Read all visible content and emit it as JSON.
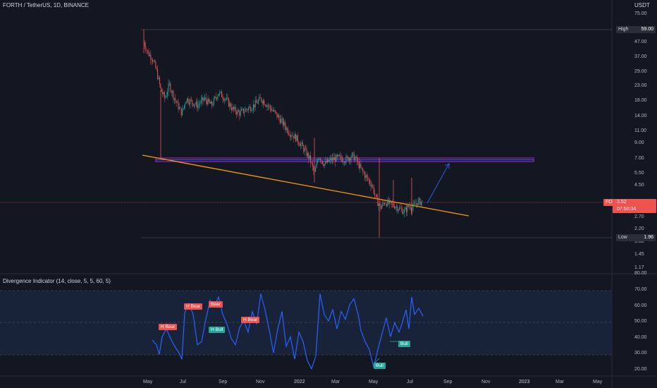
{
  "header": {
    "symbol_title": "FORTH / TetherUS, 1D, BINANCE",
    "currency": "USDT"
  },
  "price_axis": {
    "ticks": [
      "75.00",
      "59.00",
      "47.00",
      "37.00",
      "29.00",
      "23.00",
      "18.00",
      "14.00",
      "11.00",
      "9.00",
      "7.00",
      "5.50",
      "4.50",
      "3.52",
      "2.70",
      "2.20",
      "1.80",
      "1.45",
      "1.17"
    ]
  },
  "markers": {
    "high": {
      "label": "High",
      "value": "59.00"
    },
    "low": {
      "label": "Low",
      "value": "1.96"
    },
    "last": {
      "label": "FORTHUSDT",
      "value": "3.52",
      "countdown": "07:50:34"
    }
  },
  "indicator": {
    "title": "Divergence Indicator (14, close, 5, 5, 60, 5)",
    "axis_ticks": [
      "80.00",
      "70.00",
      "60.00",
      "50.00",
      "40.00",
      "30.00",
      "20.00"
    ],
    "labels": [
      {
        "text": "H Bear",
        "kind": "bear"
      },
      {
        "text": "H Bear",
        "kind": "bear"
      },
      {
        "text": "Bear",
        "kind": "bear"
      },
      {
        "text": "H Bull",
        "kind": "bull"
      },
      {
        "text": "H Bear",
        "kind": "bear"
      },
      {
        "text": "Bull",
        "kind": "bull"
      },
      {
        "text": "Bull",
        "kind": "bull"
      }
    ]
  },
  "time_axis": {
    "ticks": [
      "May",
      "Jul",
      "Sep",
      "Nov",
      "2022",
      "Mar",
      "May",
      "Jul",
      "Sep",
      "Nov",
      "2023",
      "Mar",
      "May"
    ]
  },
  "colors": {
    "background": "#131722",
    "bull": "#26a69a",
    "bear": "#ef5350",
    "trendline": "#ff9800",
    "zone": "#9c27b0",
    "projection": "#2962ff",
    "rsi": "#2962ff"
  },
  "chart_data": {
    "type": "candlestick",
    "series": [
      {
        "name": "FORTHUSDT",
        "y_scale": "log"
      }
    ],
    "x": [
      "May",
      "Jul",
      "Sep",
      "Nov",
      "2022",
      "Mar",
      "May",
      "Jul"
    ],
    "close_approx": [
      40,
      20,
      18,
      17,
      10,
      7,
      3.2,
      3.52
    ],
    "y_range": [
      1.0,
      80
    ],
    "high": 59.0,
    "low": 1.96,
    "last": 3.52,
    "indicator_range": [
      20,
      80
    ]
  }
}
